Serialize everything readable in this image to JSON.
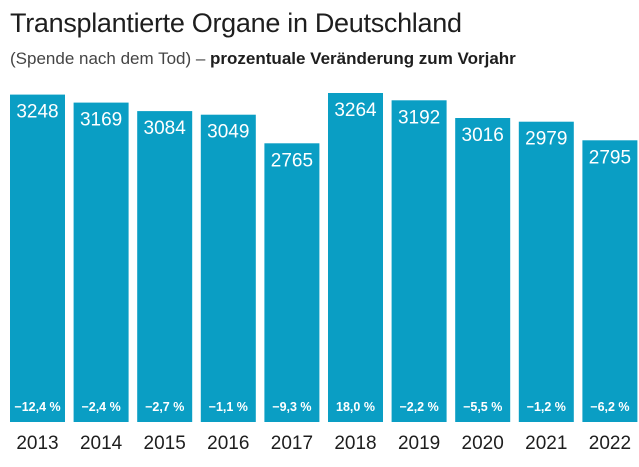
{
  "header": {
    "title": "Transplantierte Organe in Deutschland",
    "subtitle_plain": "(Spende nach dem Tod) – ",
    "subtitle_bold": "prozentuale Veränderung zum Vorjahr"
  },
  "colors": {
    "bar": "#0a9ec4",
    "bar_text": "#ffffff",
    "axis_text": "#1e1e1e"
  },
  "chart_data": {
    "type": "bar",
    "title": "Transplantierte Organe in Deutschland",
    "subtitle": "(Spende nach dem Tod) – prozentuale Veränderung zum Vorjahr",
    "categories": [
      "2013",
      "2014",
      "2015",
      "2016",
      "2017",
      "2018",
      "2019",
      "2020",
      "2021",
      "2022"
    ],
    "values": [
      3248,
      3169,
      3084,
      3049,
      2765,
      3264,
      3192,
      3016,
      2979,
      2795
    ],
    "value_labels": [
      "3248",
      "3169",
      "3084",
      "3049",
      "2765",
      "3264",
      "3192",
      "3016",
      "2979",
      "2795"
    ],
    "change_labels": [
      "−12,4 %",
      "−2,4 %",
      "−2,7 %",
      "−1,1 %",
      "−9,3 %",
      "18,0 %",
      "−2,2 %",
      "−5,5 %",
      "−1,2 %",
      "−6,2 %"
    ],
    "change_values": [
      -12.4,
      -2.4,
      -2.7,
      -1.1,
      -9.3,
      18.0,
      -2.2,
      -5.5,
      -1.2,
      -6.2
    ],
    "ylim": [
      0,
      3300
    ],
    "grid": false,
    "legend": "none"
  }
}
